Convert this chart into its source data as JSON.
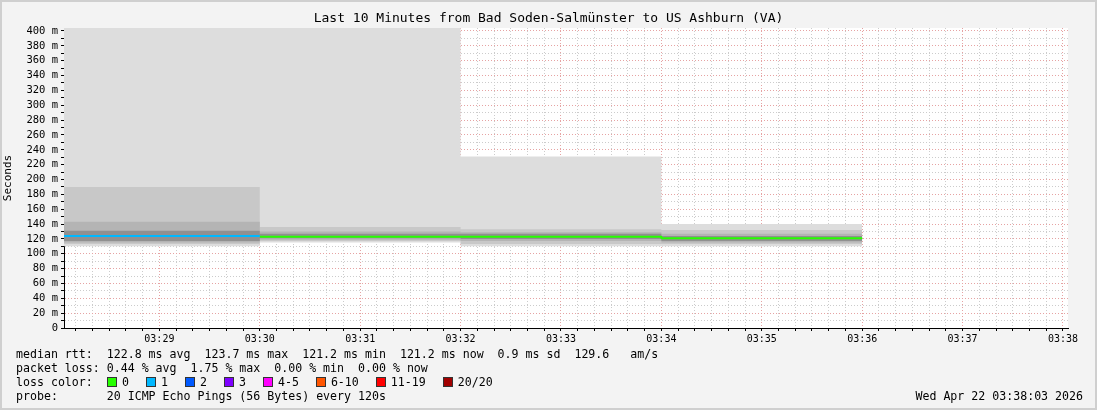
{
  "chart_data": {
    "type": "step",
    "title": "Last 10 Minutes from Bad Soden-Salmünster to US Ashburn (VA)",
    "ylabel": "Seconds",
    "legend_title": "loss color:",
    "legend": "bottom left",
    "grid": true,
    "marker": "none",
    "x": [
      3.4675,
      3.5,
      3.533333,
      3.566667,
      3.6
    ],
    "xlim": [
      3.4675,
      3.634167
    ],
    "xticks": [
      {
        "value": 3.469444,
        "label": null
      },
      {
        "value": 3.472222,
        "label": null
      },
      {
        "value": 3.475,
        "label": null
      },
      {
        "value": 3.477778,
        "label": null
      },
      {
        "value": 3.480556,
        "label": null
      },
      {
        "value": 3.483333,
        "label": "03:29"
      },
      {
        "value": 3.486111,
        "label": null
      },
      {
        "value": 3.488889,
        "label": null
      },
      {
        "value": 3.491667,
        "label": null
      },
      {
        "value": 3.494444,
        "label": null
      },
      {
        "value": 3.497222,
        "label": null
      },
      {
        "value": 3.5,
        "label": "03:30"
      },
      {
        "value": 3.502778,
        "label": null
      },
      {
        "value": 3.505556,
        "label": null
      },
      {
        "value": 3.508333,
        "label": null
      },
      {
        "value": 3.511111,
        "label": null
      },
      {
        "value": 3.513889,
        "label": null
      },
      {
        "value": 3.516667,
        "label": "03:31"
      },
      {
        "value": 3.519444,
        "label": null
      },
      {
        "value": 3.522222,
        "label": null
      },
      {
        "value": 3.525,
        "label": null
      },
      {
        "value": 3.527778,
        "label": null
      },
      {
        "value": 3.530556,
        "label": null
      },
      {
        "value": 3.533333,
        "label": "03:32"
      },
      {
        "value": 3.536111,
        "label": null
      },
      {
        "value": 3.538889,
        "label": null
      },
      {
        "value": 3.541667,
        "label": null
      },
      {
        "value": 3.544444,
        "label": null
      },
      {
        "value": 3.547222,
        "label": null
      },
      {
        "value": 3.55,
        "label": "03:33"
      },
      {
        "value": 3.552778,
        "label": null
      },
      {
        "value": 3.555556,
        "label": null
      },
      {
        "value": 3.558333,
        "label": null
      },
      {
        "value": 3.561111,
        "label": null
      },
      {
        "value": 3.563889,
        "label": null
      },
      {
        "value": 3.566667,
        "label": "03:34"
      },
      {
        "value": 3.569444,
        "label": null
      },
      {
        "value": 3.572222,
        "label": null
      },
      {
        "value": 3.575,
        "label": null
      },
      {
        "value": 3.577778,
        "label": null
      },
      {
        "value": 3.580556,
        "label": null
      },
      {
        "value": 3.583333,
        "label": "03:35"
      },
      {
        "value": 3.586111,
        "label": null
      },
      {
        "value": 3.588889,
        "label": null
      },
      {
        "value": 3.591667,
        "label": null
      },
      {
        "value": 3.594444,
        "label": null
      },
      {
        "value": 3.597222,
        "label": null
      },
      {
        "value": 3.6,
        "label": "03:36"
      },
      {
        "value": 3.602778,
        "label": null
      },
      {
        "value": 3.605556,
        "label": null
      },
      {
        "value": 3.608333,
        "label": null
      },
      {
        "value": 3.611111,
        "label": null
      },
      {
        "value": 3.613889,
        "label": null
      },
      {
        "value": 3.616667,
        "label": "03:37"
      },
      {
        "value": 3.619444,
        "label": null
      },
      {
        "value": 3.622222,
        "label": null
      },
      {
        "value": 3.625,
        "label": null
      },
      {
        "value": 3.627778,
        "label": null
      },
      {
        "value": 3.630556,
        "label": null
      },
      {
        "value": 3.633333,
        "label": "03:38"
      }
    ],
    "ylim": [
      0,
      404
    ],
    "yticks": [
      0,
      {
        "value": 10,
        "label": null
      },
      {
        "value": 20,
        "label": "20 m"
      },
      {
        "value": 30,
        "label": null
      },
      {
        "value": 40,
        "label": "40 m"
      },
      {
        "value": 50,
        "label": null
      },
      {
        "value": 60,
        "label": "60 m"
      },
      {
        "value": 70,
        "label": null
      },
      {
        "value": 80,
        "label": "80 m"
      },
      {
        "value": 90,
        "label": null
      },
      {
        "value": 100,
        "label": "100 m"
      },
      {
        "value": 110,
        "label": null
      },
      {
        "value": 120,
        "label": "120 m"
      },
      {
        "value": 130,
        "label": null
      },
      {
        "value": 140,
        "label": "140 m"
      },
      {
        "value": 150,
        "label": null
      },
      {
        "value": 160,
        "label": "160 m"
      },
      {
        "value": 170,
        "label": null
      },
      {
        "value": 180,
        "label": "180 m"
      },
      {
        "value": 190,
        "label": null
      },
      {
        "value": 200,
        "label": "200 m"
      },
      {
        "value": 210,
        "label": null
      },
      {
        "value": 220,
        "label": "220 m"
      },
      {
        "value": 230,
        "label": null
      },
      {
        "value": 240,
        "label": "240 m"
      },
      {
        "value": 250,
        "label": null
      },
      {
        "value": 260,
        "label": "260 m"
      },
      {
        "value": 270,
        "label": null
      },
      {
        "value": 280,
        "label": "280 m"
      },
      {
        "value": 290,
        "label": null
      },
      {
        "value": 300,
        "label": "300 m"
      },
      {
        "value": 310,
        "label": null
      },
      {
        "value": 320,
        "label": "320 m"
      },
      {
        "value": 330,
        "label": null
      },
      {
        "value": 340,
        "label": "340 m"
      },
      {
        "value": 350,
        "label": null
      },
      {
        "value": 360,
        "label": "360 m"
      },
      {
        "value": 370,
        "label": null
      },
      {
        "value": 380,
        "label": "380 m"
      },
      {
        "value": 390,
        "label": null
      },
      {
        "value": 400,
        "label": "400 m"
      }
    ],
    "series": [
      {
        "color": "#dddddd",
        "lower": [
          110,
          115,
          110,
          110,
          110
        ],
        "upper": [
          404,
          404,
          231,
          140,
          140
        ],
        "values": [
          null,
          null,
          null,
          null,
          null
        ]
      },
      {
        "color": "#c8c8c8",
        "lower": [
          113,
          117,
          113,
          113,
          113
        ],
        "upper": [
          190,
          136,
          133,
          132,
          132
        ],
        "values": [
          null,
          null,
          null,
          null,
          null
        ]
      },
      {
        "color": "#b4b4b4",
        "lower": [
          115,
          119,
          117,
          115,
          115
        ],
        "upper": [
          143,
          130,
          129,
          127,
          127
        ],
        "values": [
          null,
          null,
          null,
          null,
          null
        ]
      },
      {
        "color": "#909090",
        "lower": [
          117,
          121,
          120,
          117,
          117
        ],
        "upper": [
          131,
          127,
          127,
          124,
          124
        ],
        "values": [
          null,
          null,
          null,
          null,
          null
        ]
      },
      {
        "name": "0",
        "color": "#26ff00",
        "x": [
          3.5,
          3.533333,
          3.566667,
          3.6
        ],
        "values": [
          123,
          123,
          121,
          121
        ]
      },
      {
        "name": "1",
        "color": "#00b8ff",
        "x": [
          3.4675,
          3.5
        ],
        "values": [
          124,
          124
        ]
      },
      {
        "name": "2",
        "color": "#0059ff",
        "values": [
          null,
          null,
          null,
          null,
          null
        ]
      },
      {
        "name": "3",
        "color": "#7e00ff",
        "values": [
          null,
          null,
          null,
          null,
          null
        ]
      },
      {
        "name": "4-5",
        "color": "#ff00ff",
        "values": [
          null,
          null,
          null,
          null,
          null
        ]
      },
      {
        "name": "6-10",
        "color": "#ff5500",
        "values": [
          null,
          null,
          null,
          null,
          null
        ]
      },
      {
        "name": "11-19",
        "color": "#ff0000",
        "values": [
          null,
          null,
          null,
          null,
          null
        ]
      },
      {
        "name": "20/20",
        "color": "#a10000",
        "values": [
          null,
          null,
          null,
          null,
          null
        ]
      }
    ],
    "annotations": [
      "median rtt:  122.8 ms avg  123.7 ms max  121.2 ms min  121.2 ms now  0.9 ms sd  129.6   am/s",
      "packet loss: 0.44 % avg  1.75 % max  0.00 % min  0.00 % now",
      "probe:       20 ICMP Echo Pings (56 Bytes) every 120s",
      "Wed Apr 22 03:38:03 2026"
    ]
  }
}
